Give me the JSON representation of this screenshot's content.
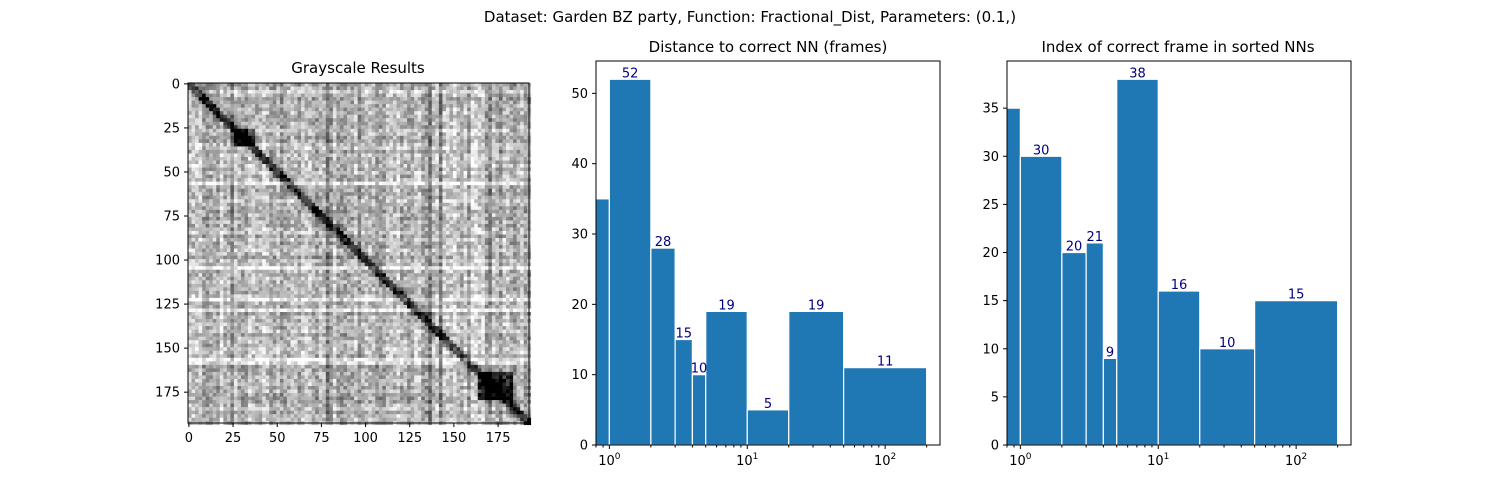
{
  "suptitle": "Dataset:  Garden BZ party,  Function:  Fractional_Dist, Parameters: (0.1,)",
  "chart_data": [
    {
      "type": "heatmap",
      "title": "Grayscale Results",
      "colormap": "gray",
      "rows": 193,
      "cols": 193,
      "x_ticks": [
        0,
        25,
        50,
        75,
        100,
        125,
        150,
        175
      ],
      "y_ticks": [
        0,
        25,
        50,
        75,
        100,
        125,
        150,
        175
      ],
      "xlim": [
        0,
        193
      ],
      "ylim": [
        193,
        0
      ]
    },
    {
      "type": "bar",
      "title": "Distance to correct NN (frames)",
      "xscale": "log",
      "xlim": [
        0.8,
        250
      ],
      "ylim": [
        0,
        54.6
      ],
      "y_ticks": [
        0,
        10,
        20,
        30,
        40,
        50
      ],
      "x_tick_labels": [
        "10^0",
        "10^1",
        "10^2"
      ],
      "bin_edges": [
        0.5,
        1,
        2,
        3,
        4,
        5,
        10,
        20,
        50,
        200
      ],
      "values": [
        35,
        52,
        28,
        15,
        10,
        19,
        5,
        19,
        11
      ],
      "data_labels": [
        "",
        "52",
        "28",
        "15",
        "10",
        "19",
        "5",
        "19",
        "11"
      ],
      "bar_color": "#1f77b4",
      "label_color": "#000080"
    },
    {
      "type": "bar",
      "title": "Index of correct frame in sorted NNs",
      "xscale": "log",
      "xlim": [
        0.8,
        250
      ],
      "ylim": [
        0,
        39.9
      ],
      "y_ticks": [
        0,
        5,
        10,
        15,
        20,
        25,
        30,
        35
      ],
      "x_tick_labels": [
        "10^0",
        "10^1",
        "10^2"
      ],
      "bin_edges": [
        0.5,
        1,
        2,
        3,
        4,
        5,
        10,
        20,
        50,
        200
      ],
      "values": [
        35,
        30,
        20,
        21,
        9,
        38,
        16,
        10,
        15
      ],
      "data_labels": [
        "",
        "30",
        "20",
        "21",
        "9",
        "38",
        "16",
        "10",
        "15"
      ],
      "bar_color": "#1f77b4",
      "label_color": "#000080"
    }
  ]
}
